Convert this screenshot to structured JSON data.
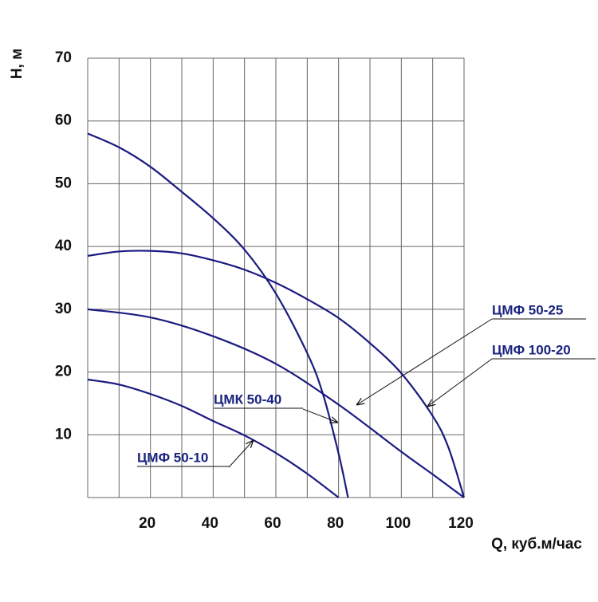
{
  "chart_data": {
    "type": "line",
    "xlabel": "Q, куб.м/час",
    "ylabel": "Н, м",
    "xlim": [
      0,
      120
    ],
    "ylim": [
      0,
      70
    ],
    "xticks": [
      20,
      40,
      60,
      80,
      100,
      120
    ],
    "yticks": [
      10,
      20,
      30,
      40,
      50,
      60,
      70
    ],
    "xgrid": [
      0,
      10,
      20,
      30,
      40,
      50,
      60,
      70,
      80,
      90,
      100,
      110,
      120
    ],
    "ygrid": [
      0,
      10,
      20,
      30,
      40,
      50,
      60,
      70
    ],
    "grid": true,
    "series": [
      {
        "name": "ЦМФ 50-10",
        "color": "#1a1a80",
        "x": [
          0,
          10,
          20,
          30,
          40,
          50,
          60,
          70,
          80
        ],
        "values": [
          18.8,
          18,
          16.5,
          14.6,
          12.2,
          9.9,
          7.1,
          3.8,
          0
        ]
      },
      {
        "name": "ЦМК 50-40",
        "color": "#1a1a80",
        "x": [
          0,
          10,
          20,
          30,
          40,
          50,
          60,
          70,
          75,
          80,
          83
        ],
        "values": [
          58,
          55.8,
          52.7,
          48.7,
          44.5,
          39.5,
          32.5,
          23,
          16.5,
          7,
          0
        ]
      },
      {
        "name": "ЦМФ 50-25",
        "color": "#1a1a80",
        "x": [
          0,
          20,
          40,
          60,
          80,
          100,
          110,
          120
        ],
        "values": [
          30,
          28.7,
          25.7,
          21.3,
          14.8,
          7.3,
          3.7,
          0
        ]
      },
      {
        "name": "ЦМФ 100-20",
        "color": "#1a1a80",
        "x": [
          0,
          10,
          20,
          30,
          40,
          50,
          60,
          70,
          80,
          90,
          100,
          110,
          115,
          120
        ],
        "values": [
          38.5,
          39.2,
          39.3,
          38.9,
          37.8,
          36.3,
          34.2,
          31.6,
          28.6,
          24.6,
          19.8,
          13,
          8,
          0
        ]
      }
    ]
  }
}
